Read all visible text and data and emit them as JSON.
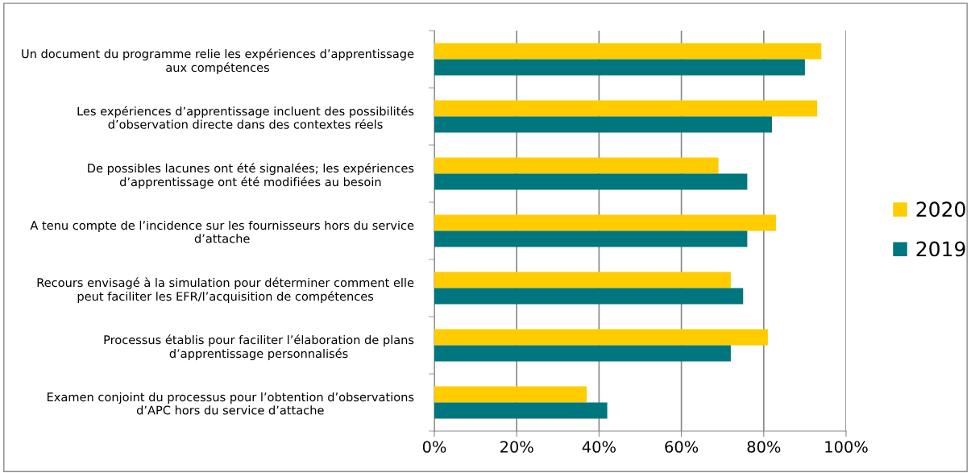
{
  "chart_data": {
    "type": "bar",
    "orientation": "horizontal",
    "categories": [
      "Un document du programme relie les expériences d’apprentissage\naux compétences",
      "Les expériences d’apprentissage incluent des possibilités\nd’observation directe dans des contextes réels",
      "De possibles lacunes ont été signalées; les expériences\nd’apprentissage ont été modifiées au besoin",
      "A tenu compte de l’incidence sur les fournisseurs hors du service\nd’attache",
      "Recours envisagé à la simulation pour déterminer comment elle\npeut faciliter les EFR/l’acquisition de compétences",
      "Processus établis pour faciliter l’élaboration de plans\nd’apprentissage personnalisés",
      "Examen conjoint du processus pour l’obtention d’observations\nd’APC hors du service d’attache"
    ],
    "series": [
      {
        "name": "2020",
        "color": "#ffcc00",
        "values": [
          94,
          93,
          69,
          83,
          72,
          81,
          37
        ]
      },
      {
        "name": "2019",
        "color": "#00767f",
        "values": [
          90,
          82,
          76,
          76,
          75,
          72,
          42
        ]
      }
    ],
    "xlim": [
      0,
      100
    ],
    "xticks": [
      {
        "value": 0,
        "label": "0%"
      },
      {
        "value": 20,
        "label": "20%"
      },
      {
        "value": 40,
        "label": "40%"
      },
      {
        "value": 60,
        "label": "60%"
      },
      {
        "value": 80,
        "label": "80%"
      },
      {
        "value": 100,
        "label": "100%"
      }
    ],
    "grid": "x",
    "legend": "right"
  }
}
